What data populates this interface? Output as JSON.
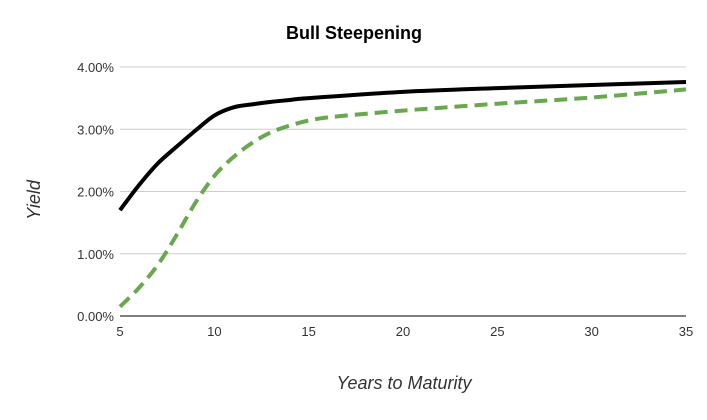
{
  "chart_data": {
    "type": "line",
    "title": "Bull Steepening",
    "xlabel": "Years to Maturity",
    "ylabel": "Yield",
    "xlim": [
      5,
      35
    ],
    "ylim": [
      0,
      4
    ],
    "x_ticks": [
      5,
      10,
      15,
      20,
      25,
      30,
      35
    ],
    "x_tick_labels": [
      "5",
      "10",
      "15",
      "20",
      "25",
      "30",
      "35"
    ],
    "y_ticks": [
      0,
      1,
      2,
      3,
      4
    ],
    "y_tick_labels": [
      "0.00%",
      "1.00%",
      "2.00%",
      "3.00%",
      "4.00%"
    ],
    "y_unit": "%",
    "grid": "horizontal",
    "legend": "none",
    "series": [
      {
        "style": "solid",
        "color": "#000000",
        "x": [
          5,
          6,
          7,
          8,
          9,
          10,
          11,
          12,
          13,
          14,
          15,
          20,
          25,
          30,
          35
        ],
        "y": [
          1.7,
          2.1,
          2.45,
          2.72,
          2.98,
          3.22,
          3.35,
          3.4,
          3.44,
          3.47,
          3.5,
          3.6,
          3.66,
          3.71,
          3.76
        ]
      },
      {
        "style": "dashed",
        "color": "#6aa84f",
        "x": [
          5,
          6,
          7,
          8,
          9,
          10,
          11,
          12,
          13,
          14,
          15,
          16,
          17,
          20,
          25,
          30,
          35
        ],
        "y": [
          0.15,
          0.45,
          0.82,
          1.3,
          1.82,
          2.25,
          2.55,
          2.78,
          2.95,
          3.06,
          3.14,
          3.19,
          3.22,
          3.3,
          3.41,
          3.51,
          3.64
        ]
      }
    ]
  }
}
